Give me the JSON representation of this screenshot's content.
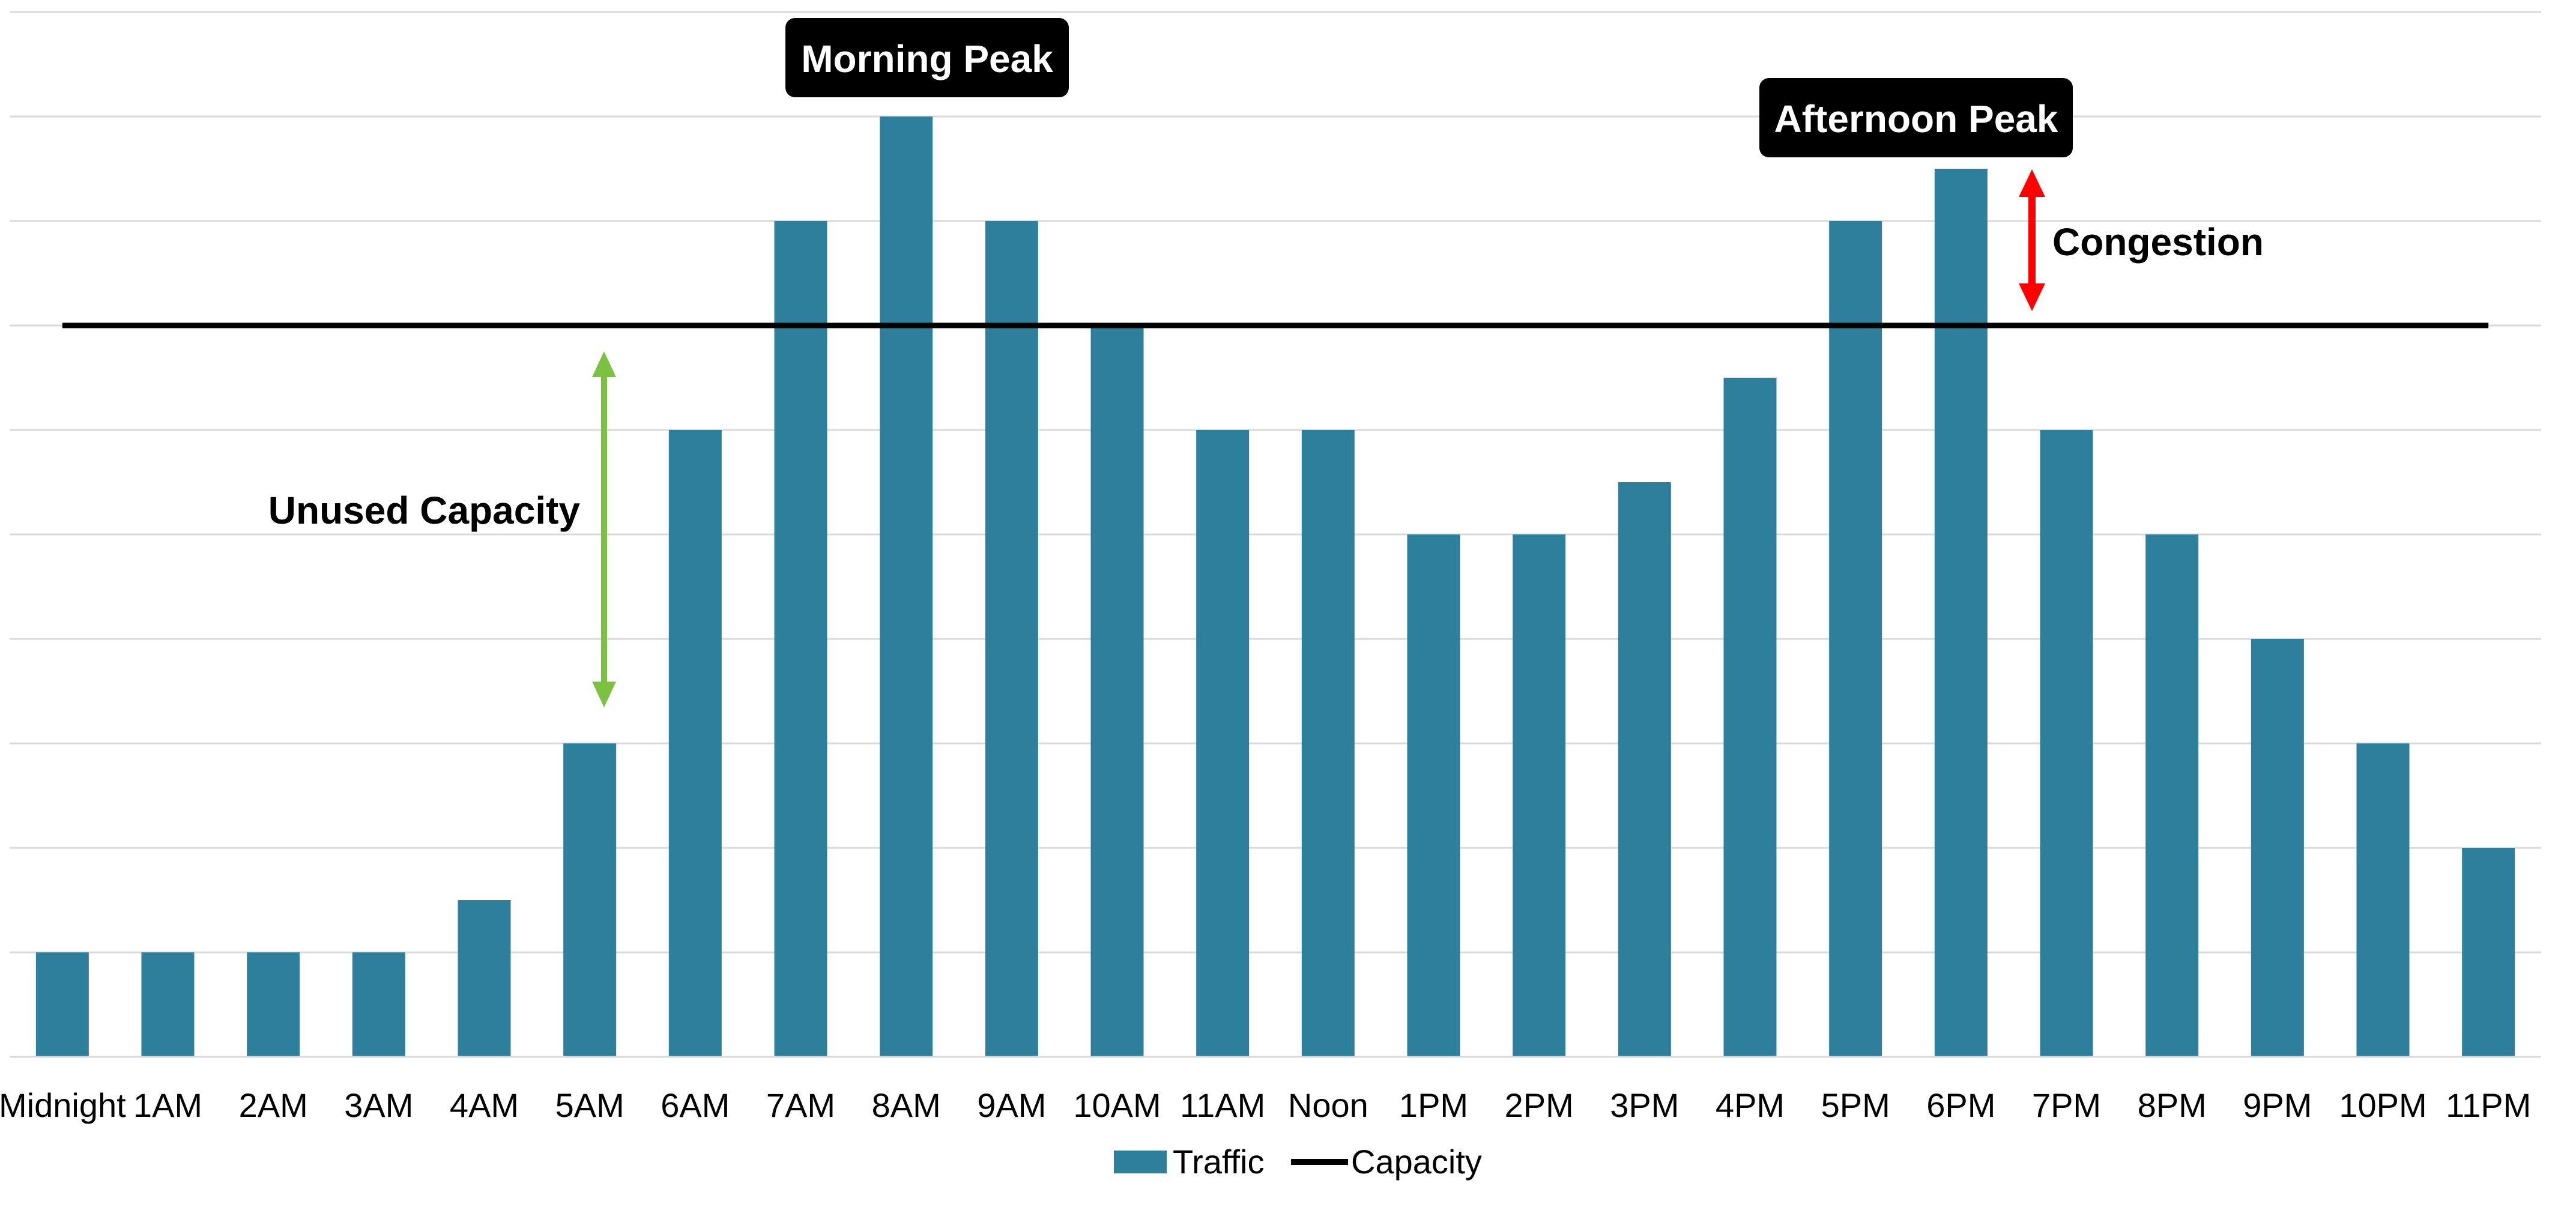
{
  "chart_data": {
    "type": "bar",
    "title": "",
    "xlabel": "",
    "ylabel": "",
    "ylim": [
      0,
      10
    ],
    "grid": true,
    "legend_position": "bottom",
    "categories": [
      "Midnight",
      "1AM",
      "2AM",
      "3AM",
      "4AM",
      "5AM",
      "6AM",
      "7AM",
      "8AM",
      "9AM",
      "10AM",
      "11AM",
      "Noon",
      "1PM",
      "2PM",
      "3PM",
      "4PM",
      "5PM",
      "6PM",
      "7PM",
      "8PM",
      "9PM",
      "10PM",
      "11PM"
    ],
    "series": [
      {
        "name": "Traffic",
        "type": "bar",
        "color": "#2e7f9c",
        "values": [
          1,
          1,
          1,
          1,
          1.5,
          3,
          6,
          8,
          9,
          8,
          7,
          6,
          6,
          5,
          5,
          5.5,
          6.5,
          8,
          8.5,
          6,
          5,
          4,
          3,
          2
        ]
      },
      {
        "name": "Capacity",
        "type": "line",
        "color": "#000000",
        "value": 7
      }
    ],
    "annotations": {
      "morning_peak": "Morning Peak",
      "afternoon_peak": "Afternoon Peak",
      "congestion": "Congestion",
      "unused_capacity": "Unused Capacity"
    },
    "annotation_colors": {
      "congestion_arrow": "#ff0000",
      "unused_capacity_arrow": "#7cc242",
      "callout_box": "#000000"
    }
  }
}
